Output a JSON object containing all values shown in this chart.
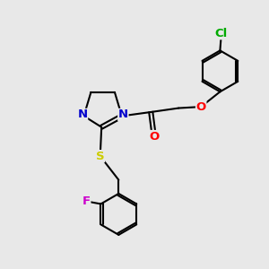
{
  "bg_color": "#e8e8e8",
  "bond_color": "#000000",
  "bond_width": 1.5,
  "atom_colors": {
    "N": "#0000cc",
    "O": "#ff0000",
    "S": "#cccc00",
    "F": "#cc00cc",
    "Cl": "#00aa00",
    "C": "#000000"
  }
}
